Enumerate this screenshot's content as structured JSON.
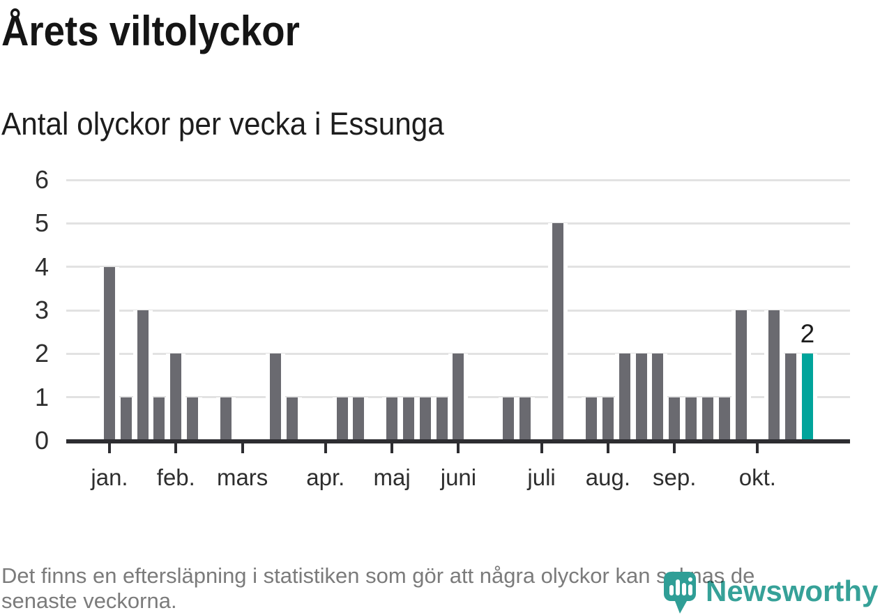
{
  "title": "Årets viltolyckor",
  "subtitle": "Antal olyckor per vecka i Essunga",
  "footer": {
    "lines": [
      "Det finns en eftersläpning i statistiken som gör att några olyckor kan saknas de",
      "senaste veckorna."
    ]
  },
  "logo": {
    "name": "Newsworthy",
    "icon": "newsworthy-pin-bar-chart-icon",
    "color": "#36a198"
  },
  "chart_data": {
    "type": "bar",
    "title": "Årets viltolyckor",
    "subtitle": "Antal olyckor per vecka i Essunga",
    "xlabel": "",
    "ylabel": "",
    "x_unit": "vecka",
    "first_week": 1,
    "values": [
      4,
      1,
      3,
      1,
      2,
      1,
      0,
      1,
      0,
      0,
      2,
      1,
      0,
      0,
      1,
      1,
      0,
      1,
      1,
      1,
      1,
      2,
      0,
      0,
      1,
      1,
      0,
      5,
      0,
      1,
      1,
      2,
      2,
      2,
      1,
      1,
      1,
      1,
      3,
      0,
      3,
      2,
      2
    ],
    "highlight": {
      "week": 43,
      "label": "2",
      "value": 2
    },
    "months": [
      {
        "label": "jan.",
        "week": 1
      },
      {
        "label": "feb.",
        "week": 5
      },
      {
        "label": "mars",
        "week": 9
      },
      {
        "label": "apr.",
        "week": 14
      },
      {
        "label": "maj",
        "week": 18
      },
      {
        "label": "juni",
        "week": 22
      },
      {
        "label": "juli",
        "week": 27
      },
      {
        "label": "aug.",
        "week": 31
      },
      {
        "label": "sep.",
        "week": 35
      },
      {
        "label": "okt.",
        "week": 40
      }
    ],
    "ylim": [
      0,
      6
    ],
    "y_ticks": [
      0,
      1,
      2,
      3,
      4,
      5,
      6
    ],
    "grid": true,
    "legend": "none",
    "bar_color": "#6a6a70",
    "highlight_color": "#00a49b"
  }
}
